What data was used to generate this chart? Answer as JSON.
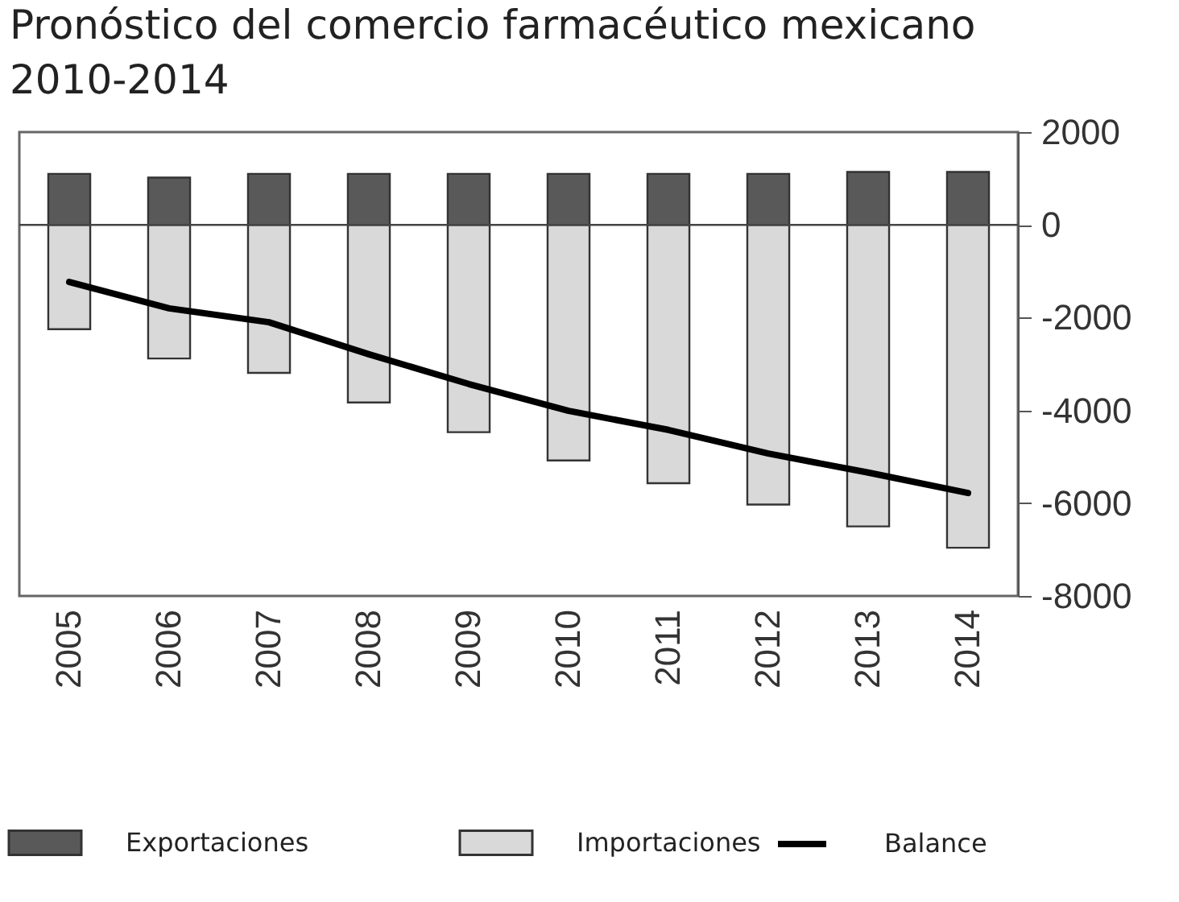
{
  "chart_data": {
    "type": "bar",
    "title": "Pronóstico del comercio farmacéutico mexicano\n2010-2014",
    "categories": [
      "2005",
      "2006",
      "2007",
      "2008",
      "2009",
      "2010",
      "2011",
      "2012",
      "2013",
      "2014"
    ],
    "series": [
      {
        "name": "Exportaciones",
        "color": "#595959",
        "values": [
          1100,
          1020,
          1100,
          1100,
          1100,
          1100,
          1100,
          1100,
          1140,
          1140
        ]
      },
      {
        "name": "Importaciones",
        "color": "#d9d9d9",
        "values": [
          -2250,
          -2880,
          -3190,
          -3830,
          -4470,
          -5080,
          -5570,
          -6030,
          -6500,
          -6960
        ]
      },
      {
        "name": "Balance",
        "type": "line",
        "color": "#000000",
        "values": [
          -1230,
          -1800,
          -2100,
          -2790,
          -3430,
          -4010,
          -4420,
          -4930,
          -5340,
          -5780
        ]
      }
    ],
    "ylim": [
      -8000,
      2000
    ],
    "yticks": [
      -8000,
      -6000,
      -4000,
      -2000,
      0,
      2000
    ],
    "ref_lines": [
      {
        "axis": "y",
        "value": 0
      }
    ],
    "stacked": true,
    "grid": false,
    "legend": "bottom",
    "marker": "none",
    "line_style": "solid"
  }
}
